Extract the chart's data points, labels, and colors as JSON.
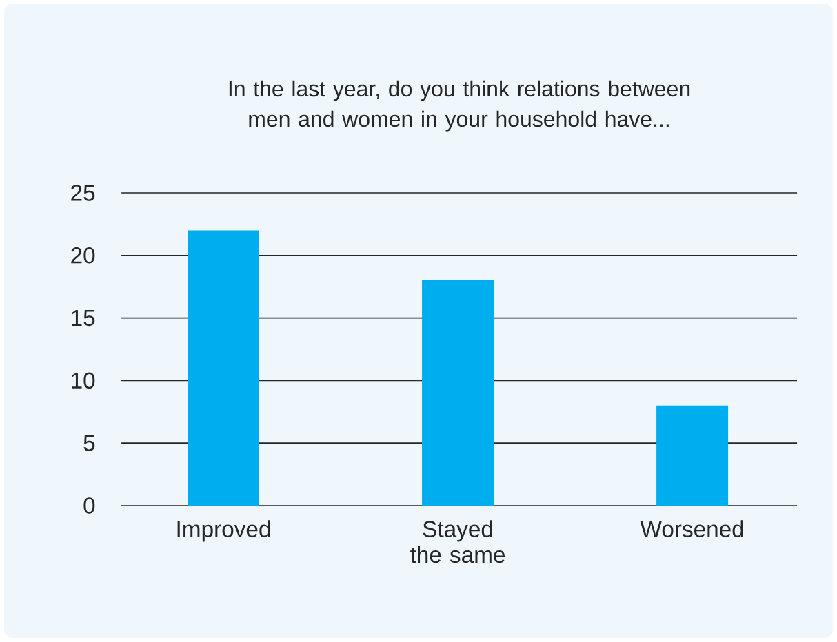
{
  "chart_data": {
    "type": "bar",
    "title": "In the last year, do you think relations between men and women in your household have...",
    "categories": [
      "Improved",
      "Stayed the same",
      "Worsened"
    ],
    "values": [
      22,
      18,
      8
    ],
    "color": "#00aeef",
    "ylim": [
      0,
      25
    ],
    "yticks": [
      0,
      5,
      10,
      15,
      20,
      25
    ],
    "grid": "y"
  }
}
